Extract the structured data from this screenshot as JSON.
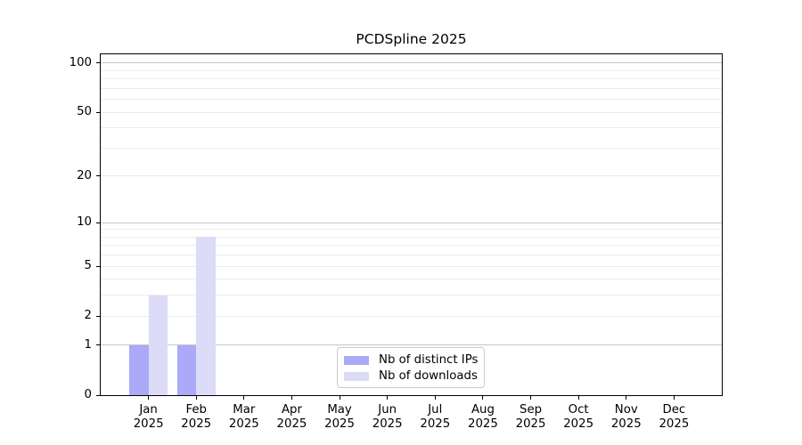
{
  "chart_data": {
    "type": "bar",
    "title": "PCDSpline 2025",
    "categories": [
      "Jan 2025",
      "Feb 2025",
      "Mar 2025",
      "Apr 2025",
      "May 2025",
      "Jun 2025",
      "Jul 2025",
      "Aug 2025",
      "Sep 2025",
      "Oct 2025",
      "Nov 2025",
      "Dec 2025"
    ],
    "months": [
      "Jan",
      "Feb",
      "Mar",
      "Apr",
      "May",
      "Jun",
      "Jul",
      "Aug",
      "Sep",
      "Oct",
      "Nov",
      "Dec"
    ],
    "year_label": "2025",
    "series": [
      {
        "name": "Nb of distinct IPs",
        "color": "#aaaaf8",
        "values": [
          1,
          1,
          0,
          0,
          0,
          0,
          0,
          0,
          0,
          0,
          0,
          0
        ]
      },
      {
        "name": "Nb of downloads",
        "color": "#dcdcf8",
        "values": [
          3,
          8,
          0,
          0,
          0,
          0,
          0,
          0,
          0,
          0,
          0,
          0
        ]
      }
    ],
    "y_axis": {
      "scale": "log10(1+y)",
      "tick_values": [
        0,
        1,
        2,
        5,
        10,
        20,
        50,
        100
      ],
      "tick_labels": [
        "0",
        "1",
        "2",
        "5",
        "10",
        "20",
        "50",
        "100"
      ],
      "major_grid_values": [
        1,
        10,
        100
      ],
      "minor_grid_values": [
        2,
        3,
        4,
        5,
        6,
        7,
        8,
        9,
        20,
        30,
        40,
        50,
        60,
        70,
        80,
        90
      ],
      "ylim": [
        0,
        113
      ]
    },
    "legend": {
      "position": "bottom-center",
      "items": [
        "Nb of distinct IPs",
        "Nb of downloads"
      ]
    },
    "grid": true
  },
  "colors": {
    "background": "#ffffff",
    "spine": "#000000",
    "major_grid": "#c6c6c6",
    "minor_grid": "#ebebeb",
    "legend_border": "#cccccc",
    "text": "#000000"
  }
}
